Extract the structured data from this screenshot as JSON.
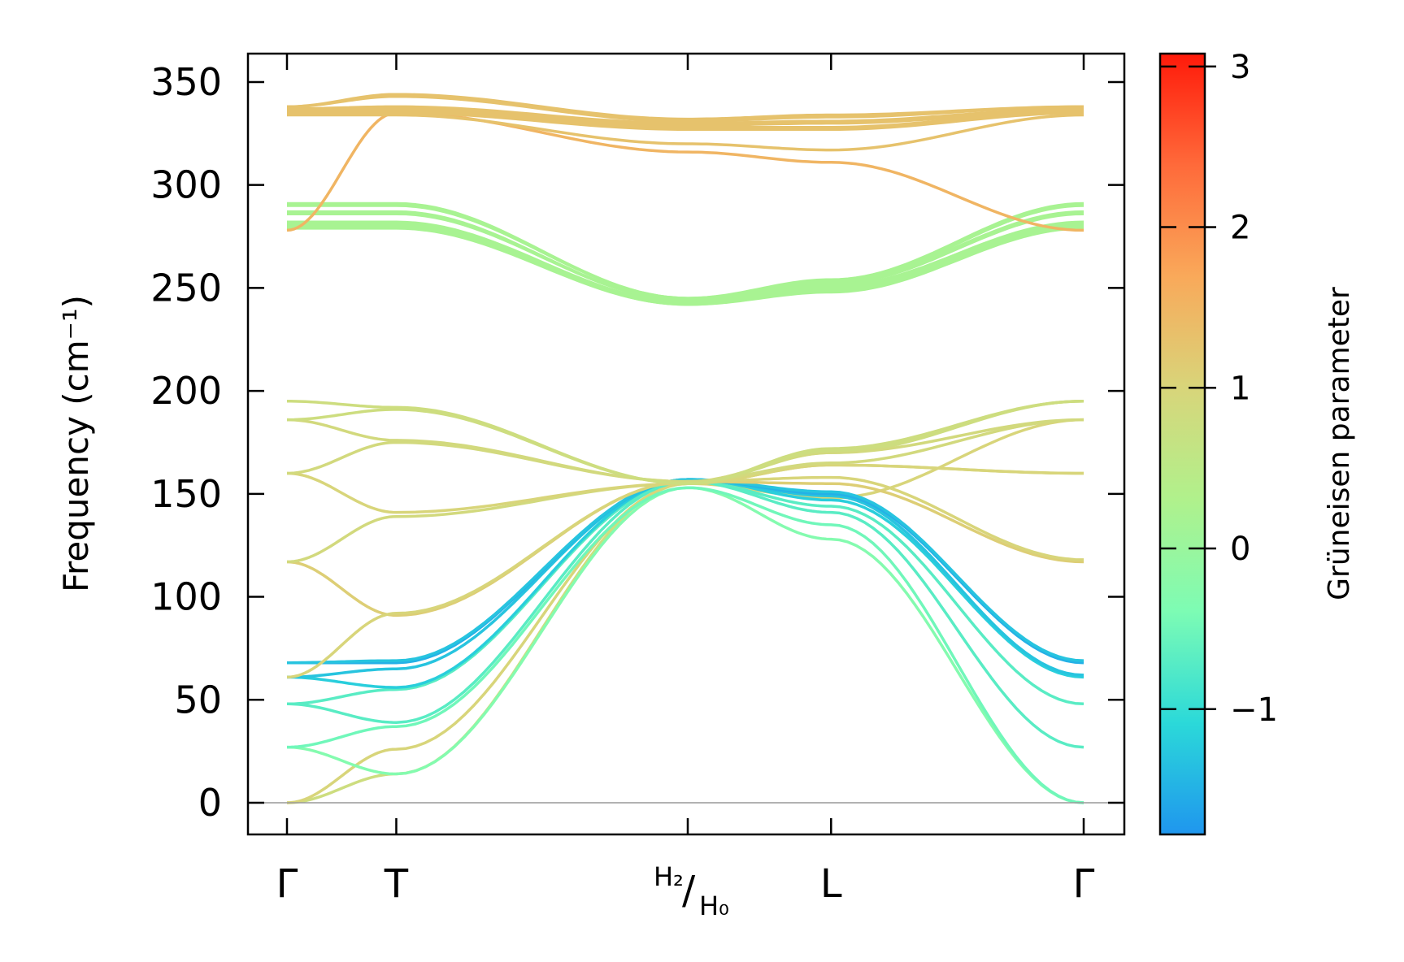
{
  "chart_data": {
    "type": "line",
    "title": "",
    "xlabel": "",
    "ylabel": "Frequency (cm⁻¹)",
    "ylim": [
      -18,
      362
    ],
    "yticks": [
      0,
      50,
      100,
      150,
      200,
      250,
      300,
      350
    ],
    "ytick_labels": [
      "0",
      "50",
      "100",
      "150",
      "200",
      "250",
      "300",
      "350"
    ],
    "xlim": [
      -0.16,
      3.47
    ],
    "kpoints": [
      {
        "x": 0.0,
        "label": "Γ"
      },
      {
        "x": 0.45,
        "label": "T"
      },
      {
        "x": 1.65,
        "label_top": "H₂",
        "label_bottom": "H₀",
        "separator": "/"
      },
      {
        "x": 2.24,
        "label": "L"
      },
      {
        "x": 3.28,
        "label": "Γ"
      }
    ],
    "zero_line": 0,
    "colorbar": {
      "label": "Grüneisen parameter",
      "range": [
        -1.78,
        3.08
      ],
      "ticks": [
        -1,
        0,
        1,
        2,
        3
      ],
      "tick_labels": [
        "−1",
        "0",
        "1",
        "2",
        "3"
      ],
      "colormap": "rainbow",
      "stops": [
        "#1f96ee",
        "#2bd9d9",
        "#7dfcb4",
        "#b0f18c",
        "#d8d57a",
        "#f9a95a",
        "#ff6a3a",
        "#ff1a0a"
      ]
    },
    "series": [
      {
        "g": 0.8,
        "x": [
          0,
          0.45,
          1.65,
          2.24,
          3.28
        ],
        "y": [
          0,
          14,
          155,
          170,
          195
        ]
      },
      {
        "g": 1.0,
        "x": [
          0,
          0.45,
          1.65,
          2.24,
          3.28
        ],
        "y": [
          0,
          26,
          155,
          148,
          186
        ]
      },
      {
        "g": -0.3,
        "x": [
          0,
          0.45,
          1.65,
          2.24,
          3.28
        ],
        "y": [
          27,
          14,
          153,
          128,
          0
        ]
      },
      {
        "g": -0.5,
        "x": [
          0,
          0.45,
          1.65,
          2.24,
          3.28
        ],
        "y": [
          27,
          37,
          153,
          135,
          0
        ]
      },
      {
        "g": -0.7,
        "x": [
          0,
          0.45,
          1.65,
          2.24,
          3.28
        ],
        "y": [
          48,
          39,
          156,
          141,
          27
        ]
      },
      {
        "g": -0.7,
        "x": [
          0,
          0.45,
          1.65,
          2.24,
          3.28
        ],
        "y": [
          48,
          55,
          156,
          144,
          48
        ]
      },
      {
        "g": -1.2,
        "x": [
          0,
          0.45,
          1.65,
          2.24,
          3.28
        ],
        "y": [
          61,
          56,
          157,
          147,
          61
        ]
      },
      {
        "g": -1.3,
        "x": [
          0,
          0.45,
          1.65,
          2.24,
          3.28
        ],
        "y": [
          61,
          65,
          157,
          149,
          62
        ]
      },
      {
        "g": -1.5,
        "x": [
          0,
          0.45,
          1.65,
          2.24,
          3.28
        ],
        "y": [
          68,
          68,
          157,
          150,
          68
        ]
      },
      {
        "g": -1.3,
        "x": [
          0,
          0.45,
          1.65,
          2.24,
          3.28
        ],
        "y": [
          68,
          69,
          157,
          151,
          69
        ]
      },
      {
        "g": 1.1,
        "x": [
          0,
          0.45,
          1.65,
          2.24,
          3.28
        ],
        "y": [
          117,
          91,
          156,
          155,
          117
        ]
      },
      {
        "g": 1.0,
        "x": [
          0,
          0.45,
          1.65,
          2.24,
          3.28
        ],
        "y": [
          61,
          92,
          156,
          158,
          118
        ]
      },
      {
        "g": 0.9,
        "x": [
          0,
          0.45,
          1.65,
          2.24,
          3.28
        ],
        "y": [
          117,
          139,
          155,
          164,
          160
        ]
      },
      {
        "g": 1.0,
        "x": [
          0,
          0.45,
          1.65,
          2.24,
          3.28
        ],
        "y": [
          160,
          141,
          155,
          164,
          160
        ]
      },
      {
        "g": 0.9,
        "x": [
          0,
          0.45,
          1.65,
          2.24,
          3.28
        ],
        "y": [
          160,
          175,
          156,
          165,
          186
        ]
      },
      {
        "g": 0.9,
        "x": [
          0,
          0.45,
          1.65,
          2.24,
          3.28
        ],
        "y": [
          186,
          176,
          156,
          170,
          186
        ]
      },
      {
        "g": 0.8,
        "x": [
          0,
          0.45,
          1.65,
          2.24,
          3.28
        ],
        "y": [
          186,
          191,
          155,
          171,
          195
        ]
      },
      {
        "g": 0.8,
        "x": [
          0,
          0.45,
          1.65,
          2.24,
          3.28
        ],
        "y": [
          195,
          192,
          155,
          172,
          195
        ]
      },
      {
        "g": 0.2,
        "x": [
          0,
          0.45,
          1.65,
          2.24,
          3.28
        ],
        "y": [
          279,
          279,
          242,
          248,
          279
        ]
      },
      {
        "g": 0.2,
        "x": [
          0,
          0.45,
          1.65,
          2.24,
          3.28
        ],
        "y": [
          280,
          280,
          242,
          249,
          280
        ]
      },
      {
        "g": 0.2,
        "x": [
          0,
          0.45,
          1.65,
          2.24,
          3.28
        ],
        "y": [
          281,
          281,
          243,
          250,
          281
        ]
      },
      {
        "g": 0.2,
        "x": [
          0,
          0.45,
          1.65,
          2.24,
          3.28
        ],
        "y": [
          282,
          282,
          243,
          251,
          282
        ]
      },
      {
        "g": 0.2,
        "x": [
          0,
          0.45,
          1.65,
          2.24,
          3.28
        ],
        "y": [
          286,
          286,
          244,
          252,
          286
        ]
      },
      {
        "g": 0.2,
        "x": [
          0,
          0.45,
          1.65,
          2.24,
          3.28
        ],
        "y": [
          287,
          287,
          244,
          253,
          287
        ]
      },
      {
        "g": 0.2,
        "x": [
          0,
          0.45,
          1.65,
          2.24,
          3.28
        ],
        "y": [
          290,
          290,
          245,
          253,
          290
        ]
      },
      {
        "g": 0.2,
        "x": [
          0,
          0.45,
          1.65,
          2.24,
          3.28
        ],
        "y": [
          291,
          291,
          245,
          254,
          291
        ]
      },
      {
        "g": 1.5,
        "x": [
          0,
          0.45,
          1.65,
          2.24,
          3.28
        ],
        "y": [
          278,
          335,
          316,
          311,
          278
        ]
      },
      {
        "g": 1.3,
        "x": [
          0,
          0.45,
          1.65,
          2.24,
          3.28
        ],
        "y": [
          334,
          334,
          320,
          317,
          334
        ]
      },
      {
        "g": 1.3,
        "x": [
          0,
          0.45,
          1.65,
          2.24,
          3.28
        ],
        "y": [
          335,
          335,
          327,
          327,
          335
        ]
      },
      {
        "g": 1.3,
        "x": [
          0,
          0.45,
          1.65,
          2.24,
          3.28
        ],
        "y": [
          336,
          336,
          328,
          328,
          336
        ]
      },
      {
        "g": 1.3,
        "x": [
          0,
          0.45,
          1.65,
          2.24,
          3.28
        ],
        "y": [
          336,
          337,
          329,
          330,
          336
        ]
      },
      {
        "g": 1.3,
        "x": [
          0,
          0.45,
          1.65,
          2.24,
          3.28
        ],
        "y": [
          337,
          338,
          330,
          331,
          337
        ]
      },
      {
        "g": 1.3,
        "x": [
          0,
          0.45,
          1.65,
          2.24,
          3.28
        ],
        "y": [
          338,
          343,
          331,
          333,
          338
        ]
      },
      {
        "g": 1.3,
        "x": [
          0,
          0.45,
          1.65,
          2.24,
          3.28
        ],
        "y": [
          338,
          344,
          332,
          334,
          338
        ]
      }
    ]
  }
}
